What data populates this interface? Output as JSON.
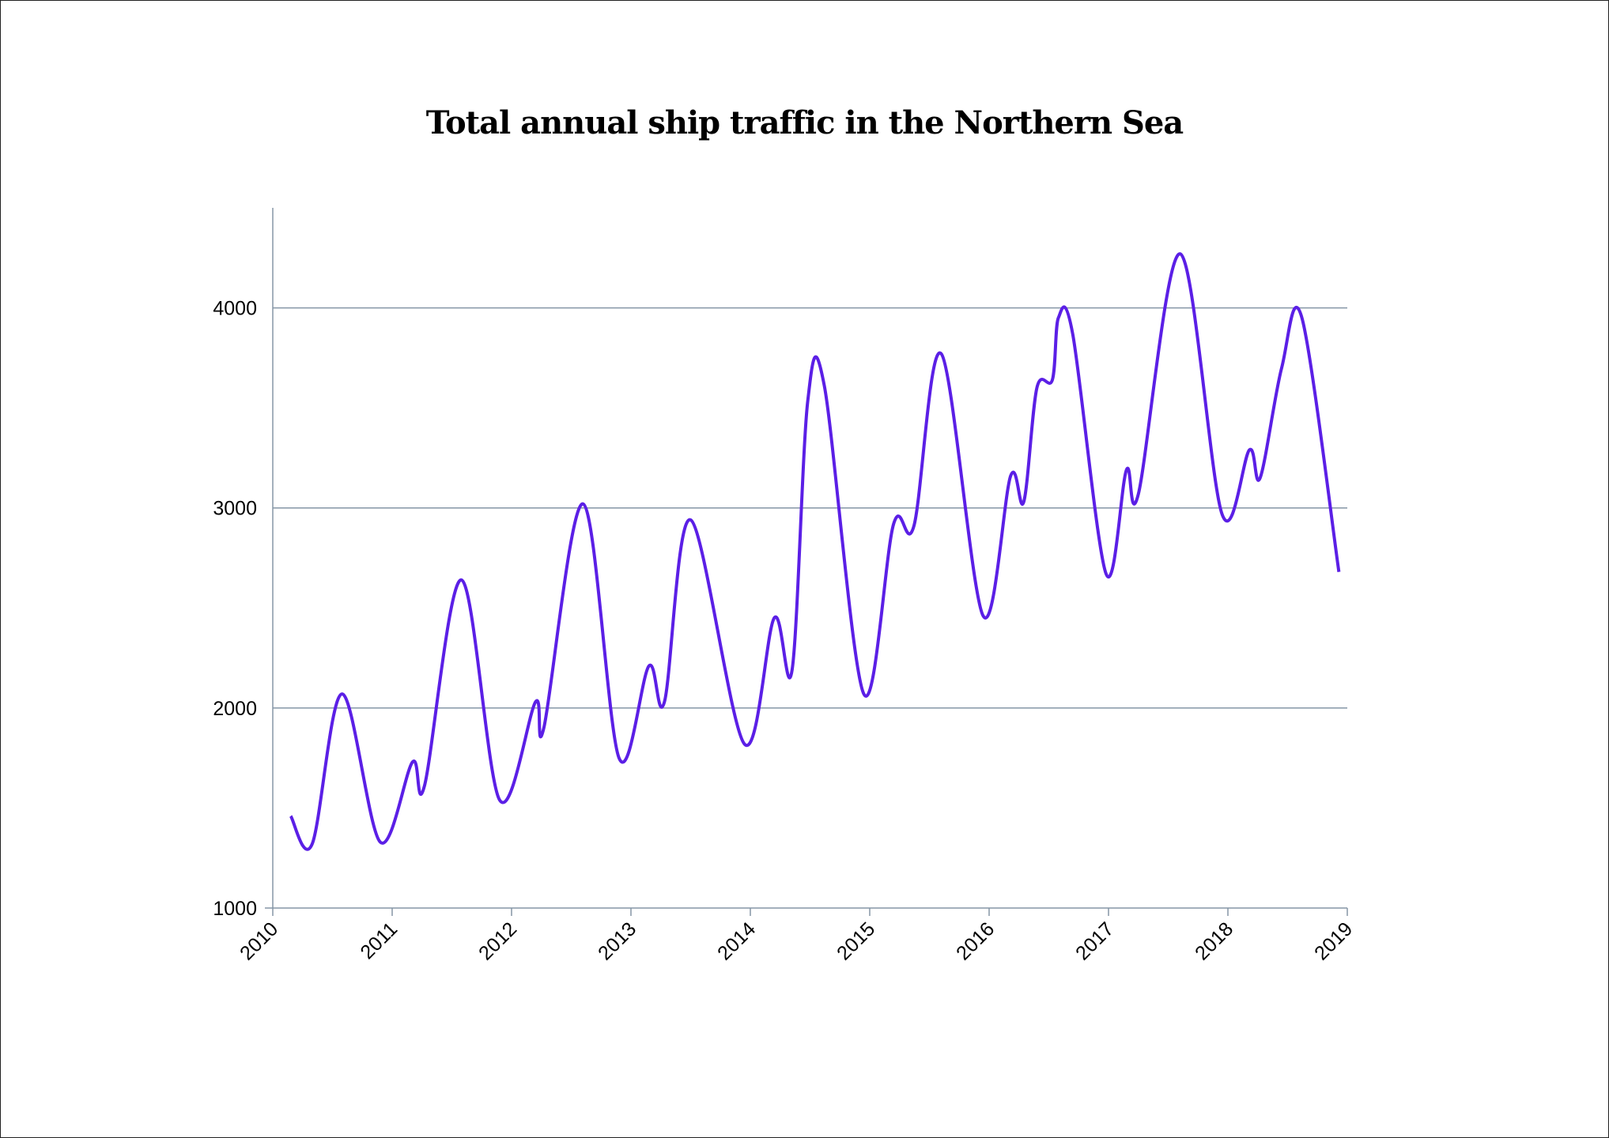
{
  "chart_data": {
    "type": "line",
    "title": "Total annual ship traffic in the Northern Sea",
    "xlabel": "",
    "ylabel": "",
    "x_ticks": [
      "2010",
      "2011",
      "2012",
      "2013",
      "2014",
      "2015",
      "2016",
      "2017",
      "2018",
      "2019"
    ],
    "y_ticks": [
      "1000",
      "2000",
      "3000",
      "4000"
    ],
    "xlim": [
      2010,
      2019
    ],
    "ylim": [
      1000,
      4500
    ],
    "grid": true,
    "line_color": "#5b1fe6",
    "series": [
      {
        "x": [
          2010.15,
          2010.33,
          2010.58,
          2010.9,
          2011.17,
          2011.27,
          2011.58,
          2011.9,
          2012.2,
          2012.27,
          2012.6,
          2012.9,
          2013.15,
          2013.28,
          2013.5,
          2013.95,
          2014.2,
          2014.35,
          2014.48,
          2014.62,
          2014.95,
          2015.2,
          2015.37,
          2015.6,
          2015.95,
          2016.18,
          2016.29,
          2016.4,
          2016.53,
          2016.58,
          2016.7,
          2016.98,
          2017.15,
          2017.25,
          2017.6,
          2017.95,
          2018.18,
          2018.27,
          2018.45,
          2018.62,
          2018.93
        ],
        "y": [
          1460,
          1320,
          2070,
          1330,
          1730,
          1610,
          2640,
          1540,
          2030,
          1900,
          3020,
          1750,
          2210,
          2030,
          2940,
          1820,
          2450,
          2190,
          3530,
          3610,
          2070,
          2920,
          2910,
          3770,
          2460,
          3160,
          3030,
          3600,
          3640,
          3950,
          3870,
          2670,
          3190,
          3070,
          4270,
          2970,
          3290,
          3150,
          3700,
          3950,
          2680
        ]
      }
    ]
  }
}
